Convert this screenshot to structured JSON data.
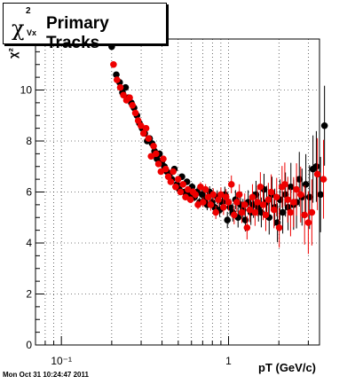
{
  "chart_data": {
    "type": "scatter",
    "title": {
      "symbol": "χ",
      "superscript": "2",
      "subscript": "Vx",
      "text": "Primary Tracks"
    },
    "xlabel": "pT (GeV/c)",
    "ylabel": "χ²",
    "xlog": true,
    "xlim": [
      0.07,
      3.5
    ],
    "ylim": [
      0,
      12
    ],
    "yticks": [
      0,
      2,
      4,
      6,
      8,
      10
    ],
    "xticks": [
      {
        "v": 0.1,
        "label": "10⁻¹"
      },
      {
        "v": 1,
        "label": "1"
      }
    ],
    "grid": true,
    "series": [
      {
        "color": "#000000",
        "points": [
          [
            0.2,
            11.7
          ],
          [
            0.213,
            10.6
          ],
          [
            0.223,
            10.3
          ],
          [
            0.232,
            9.9
          ],
          [
            0.242,
            10.1
          ],
          [
            0.252,
            9.7
          ],
          [
            0.262,
            9.5
          ],
          [
            0.272,
            9.3
          ],
          [
            0.283,
            9.0
          ],
          [
            0.293,
            8.7
          ],
          [
            0.304,
            8.5
          ],
          [
            0.315,
            8.3
          ],
          [
            0.326,
            8.0
          ],
          [
            0.337,
            8.1
          ],
          [
            0.349,
            7.9
          ],
          [
            0.361,
            7.6
          ],
          [
            0.373,
            7.3
          ],
          [
            0.386,
            7.5
          ],
          [
            0.399,
            7.2
          ],
          [
            0.413,
            7.0
          ],
          [
            0.428,
            6.8
          ],
          [
            0.443,
            6.7
          ],
          [
            0.458,
            6.5
          ],
          [
            0.474,
            6.9
          ],
          [
            0.491,
            6.3
          ],
          [
            0.508,
            6.1
          ],
          [
            0.526,
            6.6
          ],
          [
            0.545,
            6.0
          ],
          [
            0.564,
            6.4
          ],
          [
            0.584,
            5.9
          ],
          [
            0.605,
            6.2
          ],
          [
            0.626,
            5.8
          ],
          [
            0.648,
            6.0
          ],
          [
            0.671,
            5.6
          ],
          [
            0.695,
            5.9
          ],
          [
            0.719,
            5.7
          ],
          [
            0.745,
            5.5
          ],
          [
            0.771,
            6.0
          ],
          [
            0.798,
            5.6
          ],
          [
            0.827,
            5.4
          ],
          [
            0.856,
            5.8
          ],
          [
            0.886,
            5.3
          ],
          [
            0.918,
            5.6
          ],
          [
            0.95,
            5.9
          ],
          [
            0.984,
            4.9
          ],
          [
            1.02,
            5.4
          ],
          [
            1.06,
            5.2
          ],
          [
            1.1,
            5.7
          ],
          [
            1.14,
            5.0
          ],
          [
            1.18,
            5.5
          ],
          [
            1.22,
            5.3
          ],
          [
            1.26,
            4.9
          ],
          [
            1.31,
            5.6
          ],
          [
            1.36,
            5.2
          ],
          [
            1.41,
            5.5
          ],
          [
            1.46,
            5.9
          ],
          [
            1.51,
            5.4
          ],
          [
            1.57,
            5.2
          ],
          [
            1.63,
            6.1
          ],
          [
            1.69,
            5.6
          ],
          [
            1.75,
            5.0
          ],
          [
            1.82,
            5.9
          ],
          [
            1.89,
            5.4
          ],
          [
            1.96,
            4.8
          ],
          [
            2.03,
            5.7
          ],
          [
            2.11,
            5.2
          ],
          [
            2.19,
            5.9
          ],
          [
            2.27,
            5.4
          ],
          [
            2.36,
            6.2
          ],
          [
            2.45,
            5.5
          ],
          [
            2.55,
            5.6
          ],
          [
            2.65,
            6.5
          ],
          [
            2.75,
            5.8
          ],
          [
            2.9,
            6.3
          ],
          [
            3.05,
            5.8
          ],
          [
            3.2,
            6.9
          ],
          [
            3.35,
            7.0
          ],
          [
            3.55,
            5.9
          ],
          [
            3.75,
            8.6
          ]
        ]
      },
      {
        "color": "#ee0000",
        "points": [
          [
            0.205,
            11.0
          ],
          [
            0.215,
            10.4
          ],
          [
            0.225,
            10.1
          ],
          [
            0.235,
            9.8
          ],
          [
            0.245,
            9.6
          ],
          [
            0.256,
            9.7
          ],
          [
            0.266,
            9.4
          ],
          [
            0.277,
            9.1
          ],
          [
            0.288,
            8.8
          ],
          [
            0.299,
            8.6
          ],
          [
            0.31,
            8.3
          ],
          [
            0.321,
            8.5
          ],
          [
            0.332,
            8.1
          ],
          [
            0.344,
            7.4
          ],
          [
            0.356,
            7.8
          ],
          [
            0.368,
            7.5
          ],
          [
            0.381,
            7.1
          ],
          [
            0.394,
            6.8
          ],
          [
            0.407,
            7.3
          ],
          [
            0.421,
            6.9
          ],
          [
            0.436,
            6.6
          ],
          [
            0.451,
            6.4
          ],
          [
            0.466,
            6.8
          ],
          [
            0.482,
            6.2
          ],
          [
            0.499,
            6.5
          ],
          [
            0.516,
            6.0
          ],
          [
            0.534,
            6.3
          ],
          [
            0.553,
            5.8
          ],
          [
            0.572,
            6.1
          ],
          [
            0.592,
            5.7
          ],
          [
            0.613,
            6.0
          ],
          [
            0.634,
            5.9
          ],
          [
            0.656,
            5.5
          ],
          [
            0.68,
            6.2
          ],
          [
            0.704,
            5.6
          ],
          [
            0.729,
            6.1
          ],
          [
            0.755,
            5.8
          ],
          [
            0.782,
            5.5
          ],
          [
            0.81,
            5.9
          ],
          [
            0.839,
            5.2
          ],
          [
            0.869,
            5.7
          ],
          [
            0.9,
            5.9
          ],
          [
            0.933,
            5.4
          ],
          [
            0.966,
            5.8
          ],
          [
            1.0,
            5.6
          ],
          [
            1.04,
            6.3
          ],
          [
            1.08,
            5.1
          ],
          [
            1.12,
            5.6
          ],
          [
            1.16,
            5.9
          ],
          [
            1.2,
            5.2
          ],
          [
            1.25,
            5.5
          ],
          [
            1.29,
            4.6
          ],
          [
            1.34,
            5.3
          ],
          [
            1.39,
            5.8
          ],
          [
            1.44,
            5.2
          ],
          [
            1.49,
            5.6
          ],
          [
            1.55,
            6.2
          ],
          [
            1.61,
            5.5
          ],
          [
            1.67,
            5.1
          ],
          [
            1.73,
            5.7
          ],
          [
            1.8,
            6.0
          ],
          [
            1.87,
            5.3
          ],
          [
            1.94,
            5.8
          ],
          [
            2.01,
            4.6
          ],
          [
            2.09,
            6.2
          ],
          [
            2.17,
            6.3
          ],
          [
            2.26,
            5.7
          ],
          [
            2.35,
            5.2
          ],
          [
            2.45,
            5.6
          ],
          [
            2.55,
            6.1
          ],
          [
            2.7,
            5.9
          ],
          [
            2.85,
            5.1
          ],
          [
            3.0,
            4.8
          ],
          [
            3.15,
            5.2
          ],
          [
            3.4,
            6.7
          ],
          [
            3.7,
            6.5
          ]
        ]
      }
    ]
  },
  "footer": {
    "timestamp": "Mon Oct 31 10:24:47 2011"
  }
}
